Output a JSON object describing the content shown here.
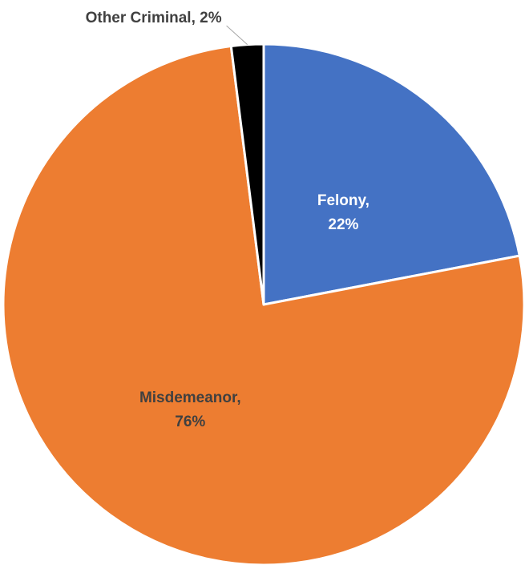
{
  "chart_data": {
    "type": "pie",
    "title": "",
    "series": [
      {
        "name": "Felony",
        "value": 22,
        "percent_label": "22%",
        "color": "#4472c4",
        "label_color": "#ffffff"
      },
      {
        "name": "Misdemeanor",
        "value": 76,
        "percent_label": "76%",
        "color": "#ed7d31",
        "label_color": "#404040"
      },
      {
        "name": "Other Criminal",
        "value": 2,
        "percent_label": "2%",
        "color": "#000000",
        "label_color": "#404040"
      }
    ],
    "start_angle_deg": 0,
    "direction": "clockwise",
    "legend": "none"
  }
}
